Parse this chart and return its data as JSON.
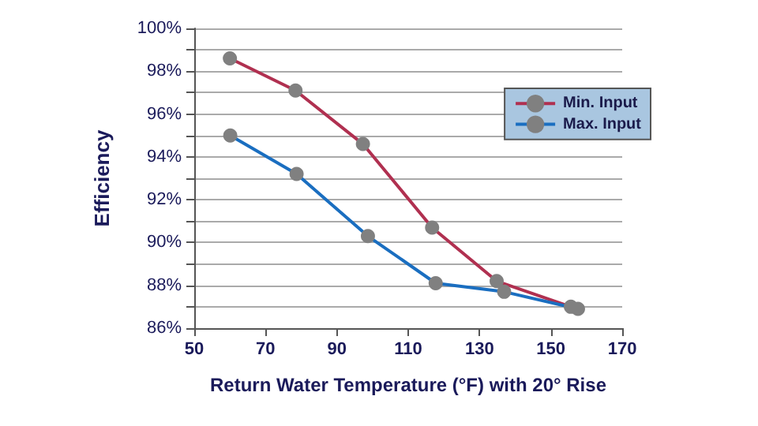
{
  "chart_data": {
    "type": "line",
    "xlabel": "Return Water Temperature (°F) with 20° Rise",
    "ylabel": "Efficiency",
    "xlim": [
      50,
      170
    ],
    "xticks": [
      50,
      70,
      90,
      110,
      130,
      150,
      170
    ],
    "ylim": [
      86,
      100
    ],
    "yticks": [
      {
        "value": 86,
        "label": "86%"
      },
      {
        "value": 87,
        "label": null
      },
      {
        "value": 88,
        "label": "88%"
      },
      {
        "value": 89,
        "label": null
      },
      {
        "value": 90,
        "label": "90%"
      },
      {
        "value": 91,
        "label": null
      },
      {
        "value": 92,
        "label": "92%"
      },
      {
        "value": 93,
        "label": null
      },
      {
        "value": 94,
        "label": "94%"
      },
      {
        "value": 95,
        "label": null
      },
      {
        "value": 96,
        "label": "96%"
      },
      {
        "value": 97,
        "label": null
      },
      {
        "value": 98,
        "label": "98%"
      },
      {
        "value": 99,
        "label": null
      },
      {
        "value": 100,
        "label": "100%"
      }
    ],
    "grid": "y",
    "legend": "top right",
    "marker": "circle",
    "line_style": "solid",
    "series": [
      {
        "name": "Min. Input",
        "color": "#b03050",
        "x": [
          60,
          78.4,
          97.3,
          116.7,
          134.8,
          155.6
        ],
        "values": [
          98.6,
          97.1,
          94.6,
          90.7,
          88.2,
          87.0
        ]
      },
      {
        "name": "Max. Input",
        "color": "#1a6ec0",
        "x": [
          60.1,
          78.7,
          98.7,
          117.7,
          136.9,
          157.6
        ],
        "values": [
          95.0,
          93.2,
          90.3,
          88.1,
          87.7,
          86.9
        ]
      }
    ]
  }
}
